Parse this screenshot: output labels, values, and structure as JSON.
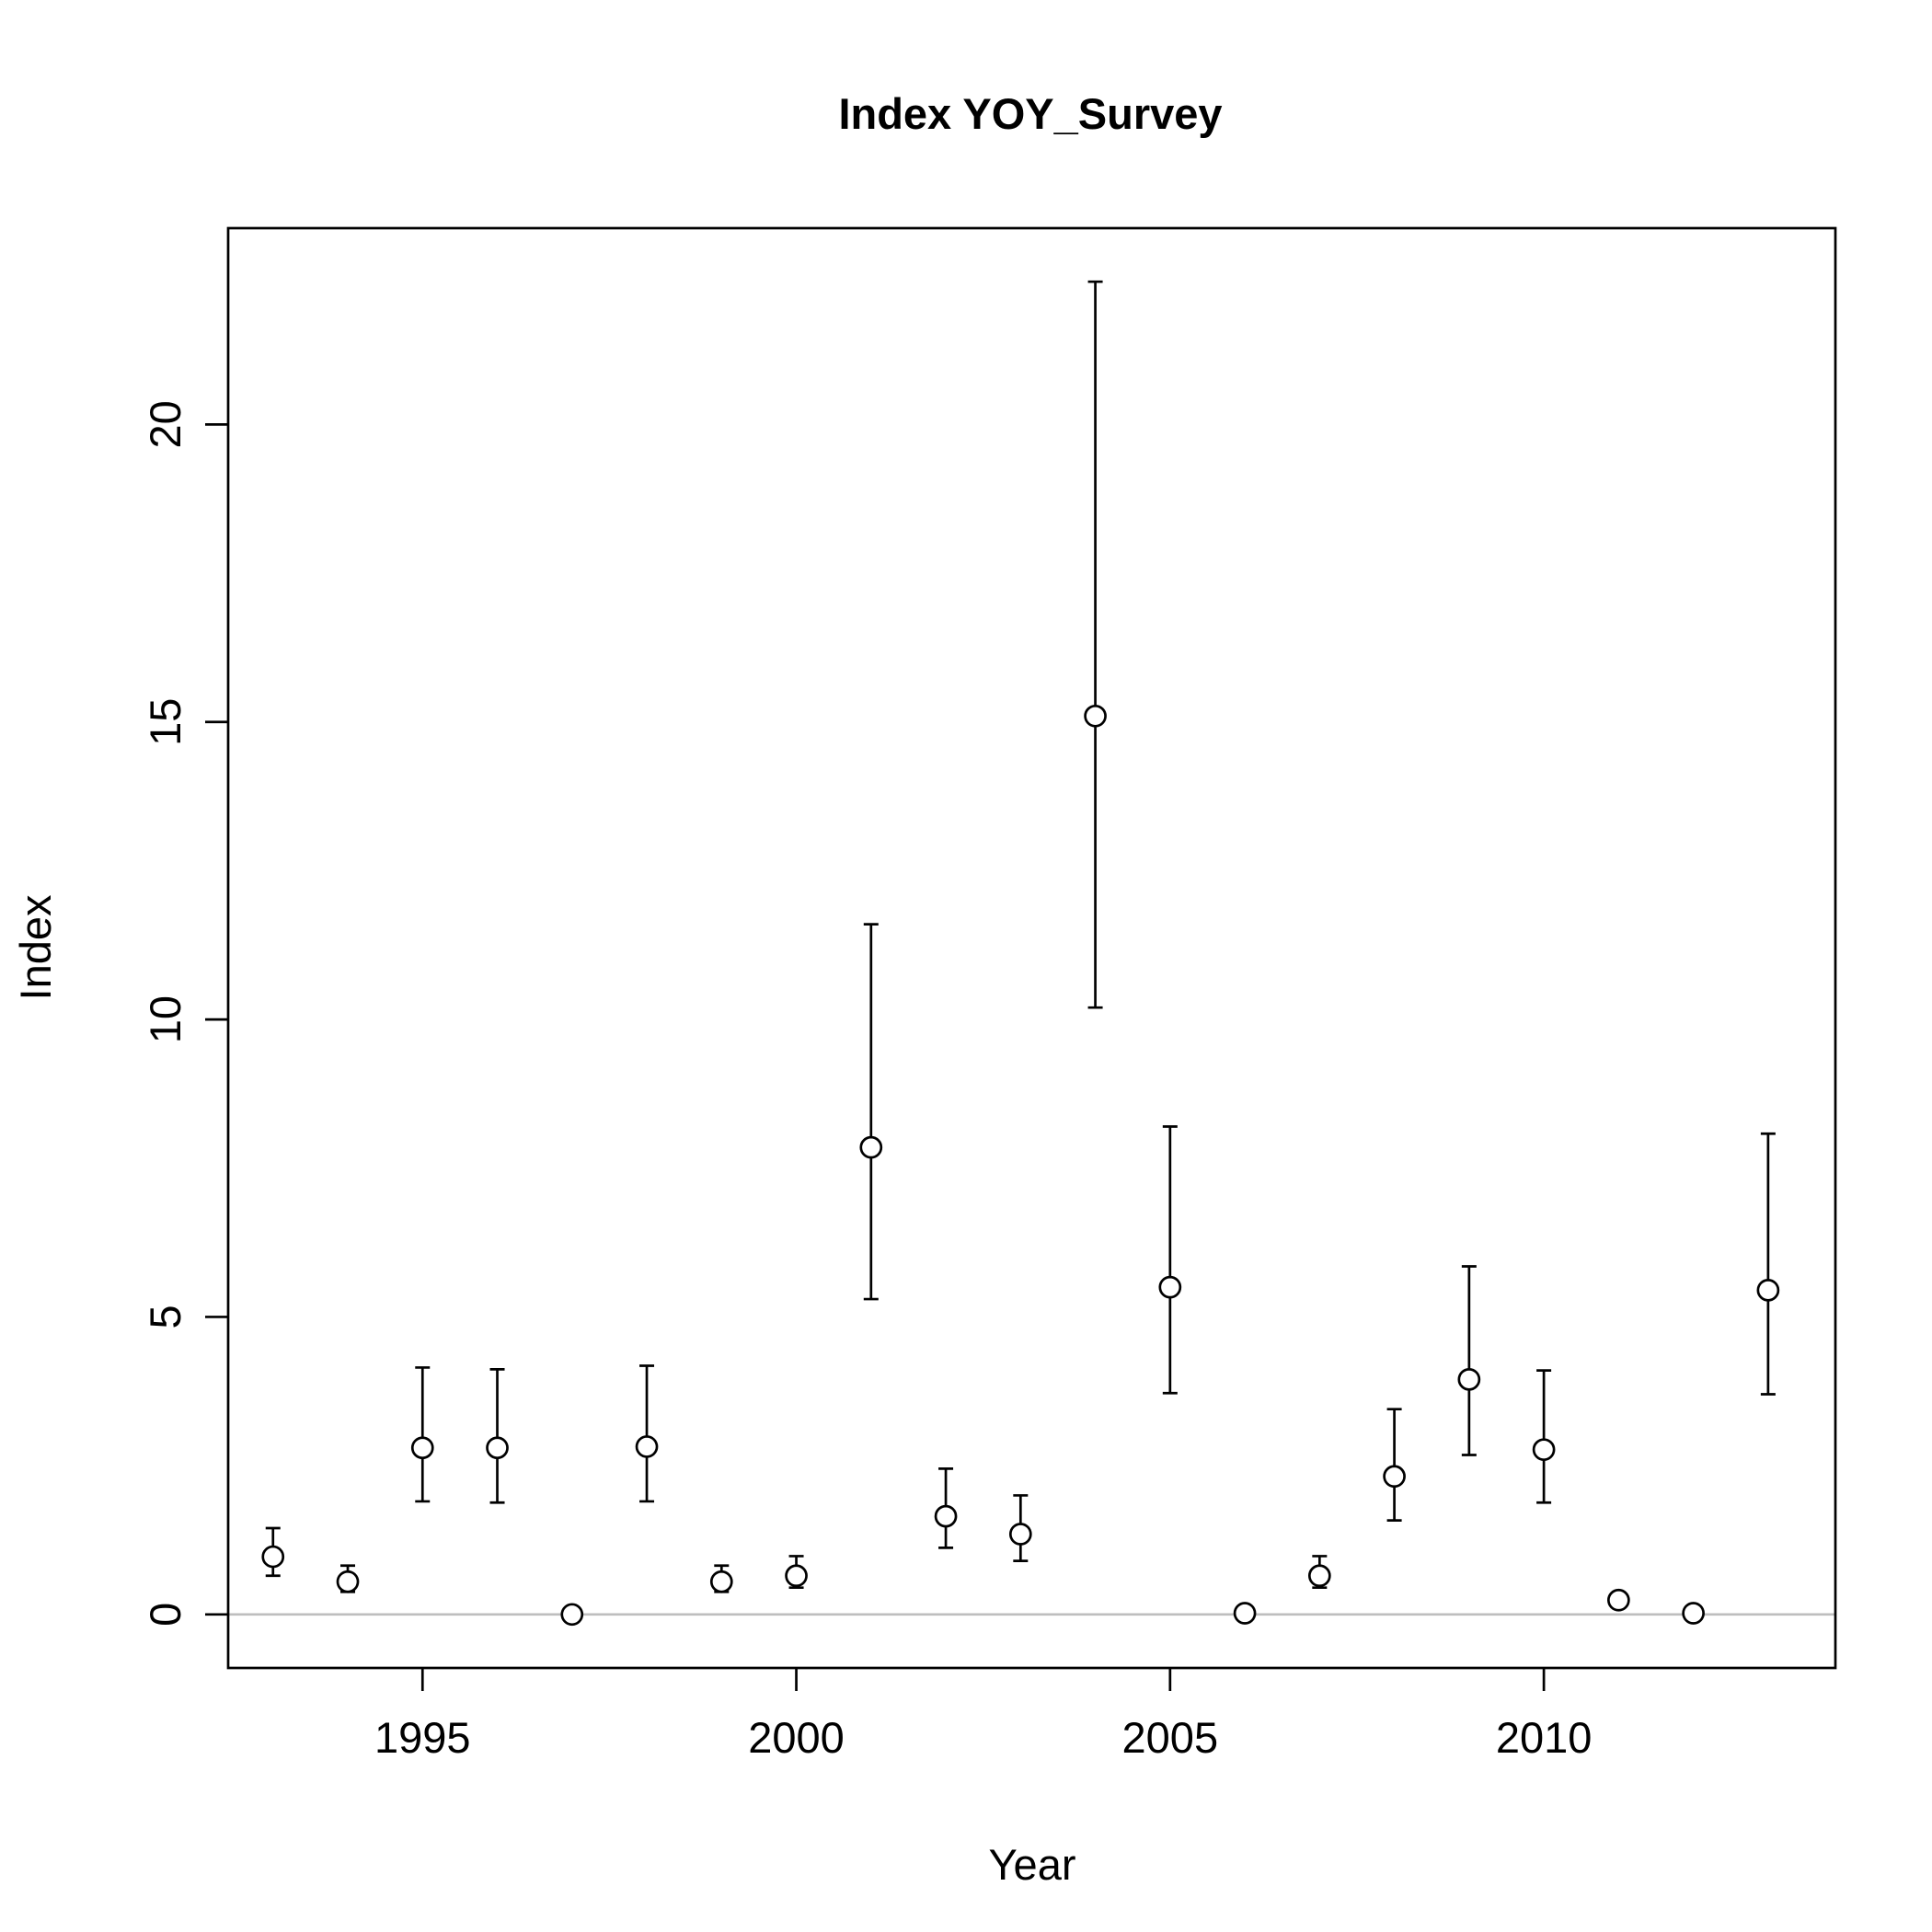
{
  "chart_data": {
    "type": "scatter",
    "title": "Index YOY_Survey",
    "xlabel": "Year",
    "ylabel": "Index",
    "xlim": [
      1992.4,
      2013.9
    ],
    "ylim": [
      -0.9,
      23.3
    ],
    "x_ticks": [
      1995,
      2000,
      2005,
      2010
    ],
    "y_ticks": [
      0,
      5,
      10,
      15,
      20
    ],
    "reference_line_y": 0,
    "colors": {
      "zero_line": "#bebebe",
      "points": "#000000",
      "point_fill": "#ffffff"
    },
    "series": [
      {
        "points": [
          {
            "x": 1993,
            "y": 0.97,
            "lo": 0.65,
            "hi": 1.45
          },
          {
            "x": 1994,
            "y": 0.55,
            "lo": 0.38,
            "hi": 0.82
          },
          {
            "x": 1995,
            "y": 2.8,
            "lo": 1.9,
            "hi": 4.15
          },
          {
            "x": 1996,
            "y": 2.8,
            "lo": 1.88,
            "hi": 4.12
          },
          {
            "x": 1997,
            "y": 0.0,
            "lo": 0.0,
            "hi": 0.0
          },
          {
            "x": 1998,
            "y": 2.82,
            "lo": 1.9,
            "hi": 4.18
          },
          {
            "x": 1999,
            "y": 0.55,
            "lo": 0.38,
            "hi": 0.82
          },
          {
            "x": 2000,
            "y": 0.65,
            "lo": 0.45,
            "hi": 0.98
          },
          {
            "x": 2001,
            "y": 7.85,
            "lo": 5.3,
            "hi": 11.6
          },
          {
            "x": 2002,
            "y": 1.65,
            "lo": 1.12,
            "hi": 2.45
          },
          {
            "x": 2003,
            "y": 1.35,
            "lo": 0.9,
            "hi": 2.0
          },
          {
            "x": 2004,
            "y": 15.1,
            "lo": 10.2,
            "hi": 22.4
          },
          {
            "x": 2005,
            "y": 5.5,
            "lo": 3.72,
            "hi": 8.2
          },
          {
            "x": 2006,
            "y": 0.02,
            "lo": 0.02,
            "hi": 0.02
          },
          {
            "x": 2007,
            "y": 0.65,
            "lo": 0.45,
            "hi": 0.98
          },
          {
            "x": 2008,
            "y": 2.32,
            "lo": 1.58,
            "hi": 3.45
          },
          {
            "x": 2009,
            "y": 3.95,
            "lo": 2.68,
            "hi": 5.85
          },
          {
            "x": 2010,
            "y": 2.77,
            "lo": 1.88,
            "hi": 4.1
          },
          {
            "x": 2011,
            "y": 0.24,
            "lo": 0.24,
            "hi": 0.24
          },
          {
            "x": 2012,
            "y": 0.02,
            "lo": 0.02,
            "hi": 0.02
          },
          {
            "x": 2013,
            "y": 5.45,
            "lo": 3.7,
            "hi": 8.08
          }
        ]
      }
    ]
  }
}
